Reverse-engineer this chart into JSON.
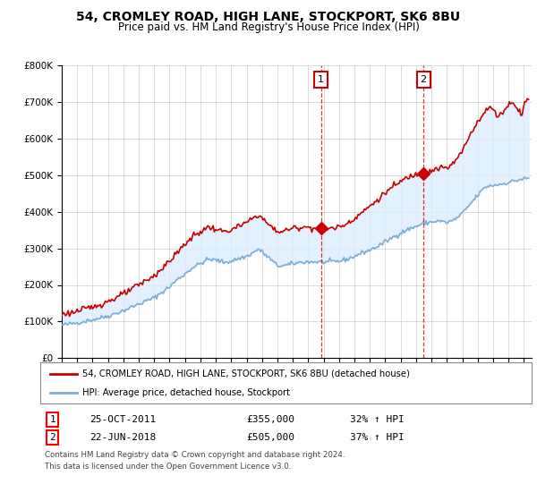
{
  "title": "54, CROMLEY ROAD, HIGH LANE, STOCKPORT, SK6 8BU",
  "subtitle": "Price paid vs. HM Land Registry's House Price Index (HPI)",
  "legend_line1": "54, CROMLEY ROAD, HIGH LANE, STOCKPORT, SK6 8BU (detached house)",
  "legend_line2": "HPI: Average price, detached house, Stockport",
  "annotation1_date": "25-OCT-2011",
  "annotation1_price": "£355,000",
  "annotation1_hpi": "32% ↑ HPI",
  "annotation2_date": "22-JUN-2018",
  "annotation2_price": "£505,000",
  "annotation2_hpi": "37% ↑ HPI",
  "footer1": "Contains HM Land Registry data © Crown copyright and database right 2024.",
  "footer2": "This data is licensed under the Open Government Licence v3.0.",
  "red_color": "#cc0000",
  "blue_color": "#7bafd4",
  "fill_color": "#ddeeff",
  "plot_bg_color": "#ffffff",
  "grid_color": "#cccccc",
  "ylim": [
    0,
    800000
  ],
  "xlim_start": 1995.0,
  "xlim_end": 2025.5,
  "sale1_year": 2011.82,
  "sale2_year": 2018.48,
  "sale1_price": 355000,
  "sale2_price": 505000
}
